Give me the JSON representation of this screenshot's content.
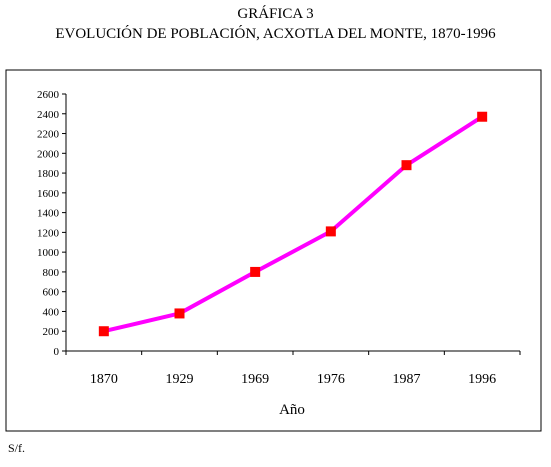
{
  "chart_data": {
    "type": "line",
    "title": "GRÁFICA 3",
    "subtitle": "EVOLUCIÓN DE POBLACIÓN, ACXOTLA DEL MONTE, 1870-1996",
    "xlabel": "Año",
    "ylabel": "",
    "categories": [
      "1870",
      "1929",
      "1969",
      "1976",
      "1987",
      "1996"
    ],
    "series": [
      {
        "values": [
          200,
          380,
          800,
          1210,
          1880,
          2370
        ]
      }
    ],
    "ylim": [
      0,
      2600
    ],
    "yticks": [
      0,
      200,
      400,
      600,
      800,
      1000,
      1200,
      1400,
      1600,
      1800,
      2000,
      2200,
      2400,
      2600
    ],
    "grid": false,
    "legend": "none",
    "colors": {
      "line": "#ff00ff",
      "marker": "#ff0000",
      "axis": "#000000"
    }
  },
  "footer": {
    "source": "S/f."
  }
}
